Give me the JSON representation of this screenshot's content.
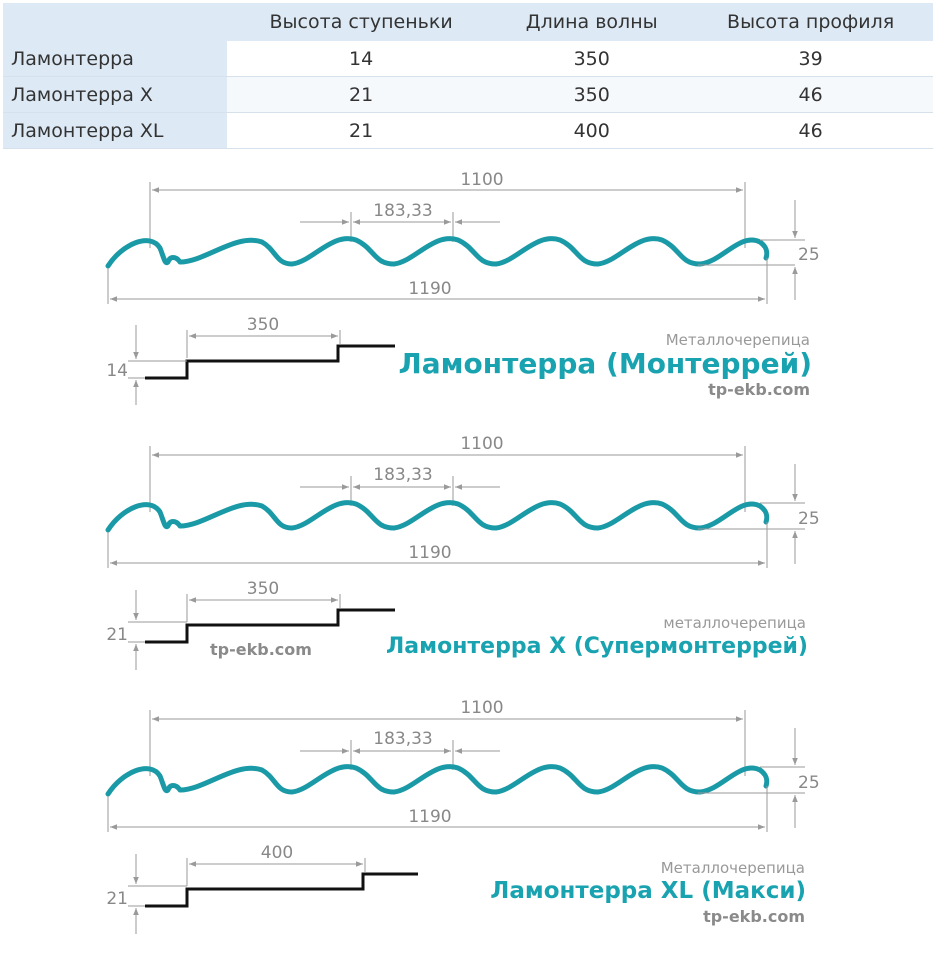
{
  "table": {
    "headers": [
      "Высота ступеньки",
      "Длина волны",
      "Высота профиля"
    ],
    "rows": [
      {
        "name": "Ламонтерра",
        "cells": [
          "14",
          "350",
          "39"
        ]
      },
      {
        "name": "Ламонтерра X",
        "cells": [
          "21",
          "350",
          "46"
        ]
      },
      {
        "name": "Ламонтерра XL",
        "cells": [
          "21",
          "400",
          "46"
        ]
      }
    ]
  },
  "diagrams": [
    {
      "total_width": "1100",
      "full_width": "1190",
      "wave_pitch": "183,33",
      "wave_height": "25",
      "step_length": "350",
      "step_height": "14",
      "caption": "Металлочерепица",
      "title": "Ламонтерра (Монтеррей)",
      "site": "tp-ekb.com"
    },
    {
      "total_width": "1100",
      "full_width": "1190",
      "wave_pitch": "183,33",
      "wave_height": "25",
      "step_length": "350",
      "step_height": "21",
      "caption": "металлочерепица",
      "title": "Ламонтерра X (Супермонтеррей)",
      "site": "tp-ekb.com"
    },
    {
      "total_width": "1100",
      "full_width": "1190",
      "wave_pitch": "183,33",
      "wave_height": "25",
      "step_length": "400",
      "step_height": "21",
      "caption": "Металлочерепица",
      "title": "Ламонтерра XL (Макси)",
      "site": "tp-ekb.com"
    }
  ],
  "colors": {
    "wave": "#1a99a6",
    "brand": "#19a3b0",
    "header_bg": "#ddeaf6",
    "dimension": "#9a9a9a"
  }
}
